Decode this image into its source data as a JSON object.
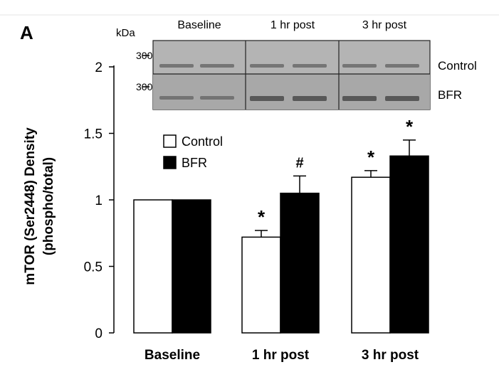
{
  "chart_data": {
    "type": "bar",
    "panel_label": "A",
    "categories": [
      "Baseline",
      "1 hr post",
      "3 hr post"
    ],
    "series": [
      {
        "name": "Control",
        "fill": "#ffffff",
        "values": [
          1.0,
          0.72,
          1.17
        ],
        "errors": [
          0.0,
          0.05,
          0.05
        ],
        "markers": [
          "",
          "*",
          "*"
        ]
      },
      {
        "name": "BFR",
        "fill": "#000000",
        "values": [
          1.0,
          1.05,
          1.33
        ],
        "errors": [
          0.0,
          0.13,
          0.12
        ],
        "markers": [
          "",
          "#",
          "*"
        ]
      }
    ],
    "ylabel_line1": "mTOR (Ser2448) Density",
    "ylabel_line2": "(phospho/total)",
    "ylim": [
      0,
      2
    ],
    "yticks": [
      0,
      0.5,
      1,
      1.5,
      2
    ],
    "ytick_labels": [
      "0",
      "0.5",
      "1",
      "1.5",
      "2"
    ],
    "legend_position": "upper-left",
    "blot": {
      "unit_label": "kDa",
      "column_labels": [
        "Baseline",
        "1 hr post",
        "3 hr post"
      ],
      "rows": [
        {
          "marker_label": "300",
          "row_label": "Control"
        },
        {
          "marker_label": "300",
          "row_label": "BFR"
        }
      ]
    }
  }
}
